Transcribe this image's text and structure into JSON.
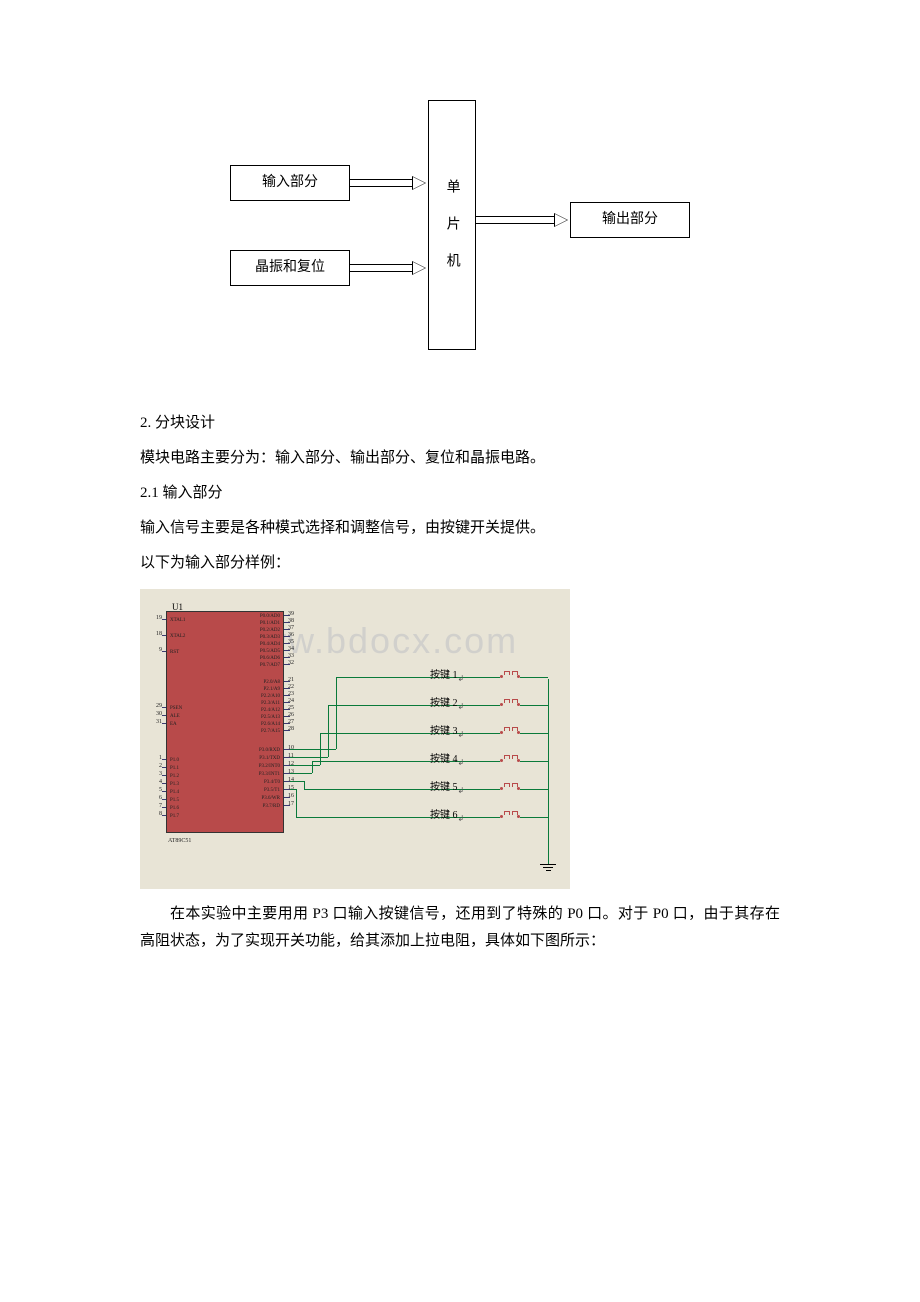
{
  "blockDiagram": {
    "inputBox": "输入部分",
    "clockResetBox": "晶振和复位",
    "mcuBox": "单\n片\n机",
    "outputBox": "输出部分"
  },
  "section2": "2. 分块设计",
  "section2desc": "模块电路主要分为：输入部分、输出部分、复位和晶振电路。",
  "section21": "2.1 输入部分",
  "section21desc1": "输入信号主要是各种模式选择和调整信号，由按键开关提供。",
  "section21desc2": "以下为输入部分样例：",
  "schematic": {
    "chip_ref": "U1",
    "chip_name": "AT89C51",
    "watermark": "ww.bdocx.com",
    "left_pins_top": [
      {
        "num": "19",
        "name": "XTAL1"
      },
      {
        "num": "18",
        "name": "XTAL2"
      },
      {
        "num": "9",
        "name": "RST"
      }
    ],
    "left_pins_mid": [
      {
        "num": "29",
        "name": "PSEN"
      },
      {
        "num": "30",
        "name": "ALE"
      },
      {
        "num": "31",
        "name": "EA"
      }
    ],
    "left_pins_bot": [
      {
        "num": "1",
        "name": "P1.0"
      },
      {
        "num": "2",
        "name": "P1.1"
      },
      {
        "num": "3",
        "name": "P1.2"
      },
      {
        "num": "4",
        "name": "P1.3"
      },
      {
        "num": "5",
        "name": "P1.4"
      },
      {
        "num": "6",
        "name": "P1.5"
      },
      {
        "num": "7",
        "name": "P1.6"
      },
      {
        "num": "8",
        "name": "P1.7"
      }
    ],
    "right_pins_p0": [
      {
        "num": "39",
        "name": "P0.0/AD0"
      },
      {
        "num": "38",
        "name": "P0.1/AD1"
      },
      {
        "num": "37",
        "name": "P0.2/AD2"
      },
      {
        "num": "36",
        "name": "P0.3/AD3"
      },
      {
        "num": "35",
        "name": "P0.4/AD4"
      },
      {
        "num": "34",
        "name": "P0.5/AD5"
      },
      {
        "num": "33",
        "name": "P0.6/AD6"
      },
      {
        "num": "32",
        "name": "P0.7/AD7"
      }
    ],
    "right_pins_p2": [
      {
        "num": "21",
        "name": "P2.0/A8"
      },
      {
        "num": "22",
        "name": "P2.1/A9"
      },
      {
        "num": "23",
        "name": "P2.2/A10"
      },
      {
        "num": "24",
        "name": "P2.3/A11"
      },
      {
        "num": "25",
        "name": "P2.4/A12"
      },
      {
        "num": "26",
        "name": "P2.5/A13"
      },
      {
        "num": "27",
        "name": "P2.6/A14"
      },
      {
        "num": "28",
        "name": "P2.7/A15"
      }
    ],
    "right_pins_p3": [
      {
        "num": "10",
        "name": "P3.0/RXD"
      },
      {
        "num": "11",
        "name": "P3.1/TXD"
      },
      {
        "num": "12",
        "name": "P3.2/INT0"
      },
      {
        "num": "13",
        "name": "P3.3/INT1"
      },
      {
        "num": "14",
        "name": "P3.4/T0"
      },
      {
        "num": "15",
        "name": "P3.5/T1"
      },
      {
        "num": "16",
        "name": "P3.6/WR"
      },
      {
        "num": "17",
        "name": "P3.7/RD"
      }
    ],
    "buttons": [
      {
        "label": "按键 1",
        "sup": "↲"
      },
      {
        "label": "按键 2",
        "sup": "↲"
      },
      {
        "label": "按键 3",
        "sup": "↲"
      },
      {
        "label": "按键 4",
        "sup": "↲"
      },
      {
        "label": "按键 5",
        "sup": "↲"
      },
      {
        "label": "按键 6",
        "sup": "↲"
      }
    ],
    "colors": {
      "chip_bg": "#b84a4a",
      "board_bg": "#e8e4d6",
      "wire": "#0a7a3a",
      "pin_line": "#3a3a70"
    }
  },
  "paragraph": "在本实验中主要用用 P3 口输入按键信号，还用到了特殊的 P0 口。对于 P0 口，由于其存在高阻状态，为了实现开关功能，给其添加上拉电阻，具体如下图所示："
}
